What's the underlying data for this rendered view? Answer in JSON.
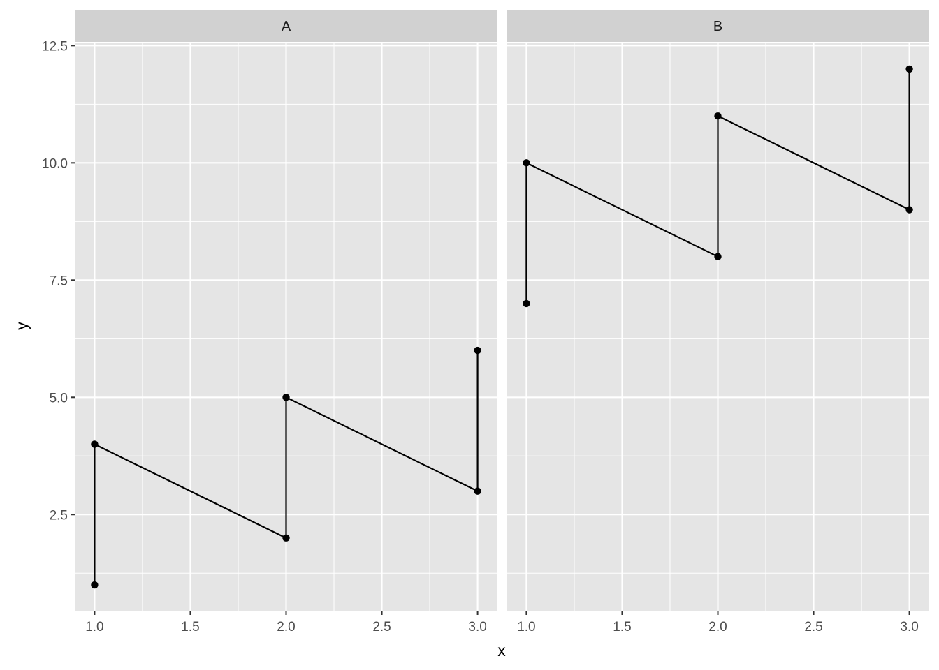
{
  "chart_data": {
    "type": "line",
    "xlabel": "x",
    "ylabel": "y",
    "xlim": [
      0.9,
      3.1
    ],
    "ylim": [
      0.45,
      12.55
    ],
    "x_ticks": [
      1.0,
      1.5,
      2.0,
      2.5,
      3.0
    ],
    "x_tick_labels": [
      "1.0",
      "1.5",
      "2.0",
      "2.5",
      "3.0"
    ],
    "y_ticks": [
      2.5,
      5.0,
      7.5,
      10.0,
      12.5
    ],
    "y_tick_labels": [
      "2.5",
      "5.0",
      "7.5",
      "10.0",
      "12.5"
    ],
    "grid": true,
    "markers": true,
    "line_color": "#000000",
    "panel_background": "#e5e5e5",
    "strip_background": "#d1d1d1",
    "facets": [
      {
        "label": "A",
        "points": [
          {
            "x": 1,
            "y": 1
          },
          {
            "x": 1,
            "y": 4
          },
          {
            "x": 2,
            "y": 2
          },
          {
            "x": 2,
            "y": 5
          },
          {
            "x": 3,
            "y": 3
          },
          {
            "x": 3,
            "y": 6
          }
        ]
      },
      {
        "label": "B",
        "points": [
          {
            "x": 1,
            "y": 7
          },
          {
            "x": 1,
            "y": 10
          },
          {
            "x": 2,
            "y": 8
          },
          {
            "x": 2,
            "y": 11
          },
          {
            "x": 3,
            "y": 9
          },
          {
            "x": 3,
            "y": 12
          }
        ]
      }
    ]
  }
}
